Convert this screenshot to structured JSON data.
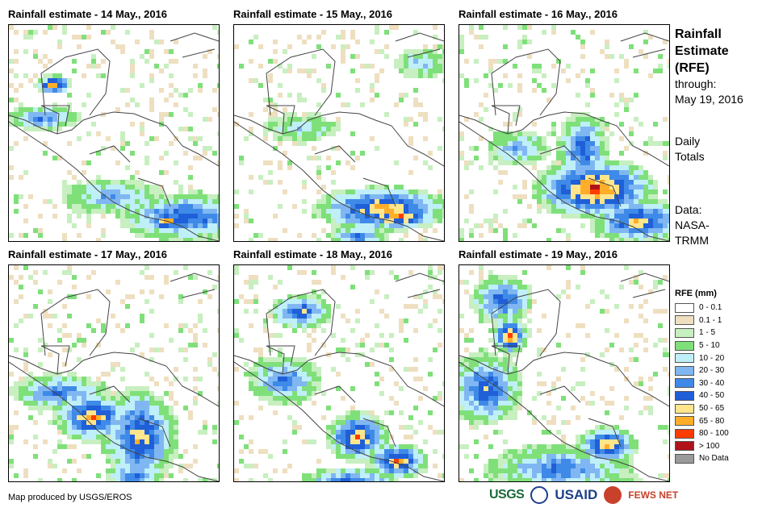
{
  "panels": [
    {
      "title": "Rainfall estimate - 14 May., 2016",
      "blobs": [
        [
          53,
          71,
          14,
          8,
          9
        ],
        [
          40,
          112,
          30,
          10,
          5
        ],
        [
          215,
          235,
          55,
          20,
          6
        ],
        [
          245,
          287,
          35,
          15,
          9
        ],
        [
          195,
          240,
          20,
          10,
          8
        ],
        [
          125,
          210,
          40,
          15,
          4
        ]
      ]
    },
    {
      "title": "Rainfall estimate - 15 May., 2016",
      "blobs": [
        [
          180,
          225,
          55,
          18,
          8
        ],
        [
          200,
          235,
          30,
          10,
          9
        ],
        [
          100,
          285,
          65,
          13,
          8
        ],
        [
          230,
          45,
          22,
          12,
          3
        ],
        [
          80,
          125,
          30,
          12,
          3
        ],
        [
          150,
          260,
          25,
          10,
          5
        ]
      ]
    },
    {
      "title": "Rainfall estimate - 16 May., 2016",
      "blobs": [
        [
          165,
          200,
          50,
          25,
          9
        ],
        [
          150,
          150,
          20,
          30,
          6
        ],
        [
          220,
          240,
          40,
          18,
          7
        ],
        [
          40,
          285,
          30,
          10,
          8
        ],
        [
          235,
          285,
          20,
          10,
          8
        ],
        [
          70,
          150,
          25,
          15,
          4
        ]
      ]
    },
    {
      "title": "Rainfall estimate - 17 May., 2016",
      "blobs": [
        [
          100,
          185,
          30,
          20,
          8
        ],
        [
          160,
          210,
          30,
          40,
          7
        ],
        [
          90,
          480,
          70,
          40,
          4
        ],
        [
          60,
          155,
          40,
          15,
          5
        ],
        [
          240,
          285,
          20,
          15,
          8
        ],
        [
          150,
          260,
          20,
          10,
          6
        ]
      ]
    },
    {
      "title": "Rainfall estimate - 18 May., 2016",
      "blobs": [
        [
          150,
          210,
          25,
          20,
          8
        ],
        [
          200,
          240,
          25,
          15,
          8
        ],
        [
          80,
          55,
          25,
          15,
          6
        ],
        [
          140,
          270,
          40,
          15,
          7
        ],
        [
          60,
          140,
          30,
          20,
          5
        ],
        [
          240,
          285,
          25,
          10,
          7
        ]
      ]
    },
    {
      "title": "Rainfall estimate - 19 May., 2016",
      "blobs": [
        [
          60,
          85,
          15,
          15,
          9
        ],
        [
          30,
          150,
          30,
          30,
          6
        ],
        [
          180,
          220,
          25,
          15,
          8
        ],
        [
          50,
          40,
          25,
          20,
          6
        ],
        [
          120,
          250,
          60,
          20,
          5
        ],
        [
          200,
          280,
          30,
          12,
          7
        ]
      ]
    }
  ],
  "side": {
    "title_line1": "Rainfall",
    "title_line2": "Estimate",
    "title_line3": "(RFE)",
    "through_label": "through:",
    "through_date": "May 19, 2016",
    "daily_line1": "Daily",
    "daily_line2": "Totals",
    "data_line1": "Data:",
    "data_line2": "NASA-",
    "data_line3": "TRMM"
  },
  "legend": {
    "title": "RFE (mm)",
    "items": [
      {
        "label": "0 - 0.1",
        "color": "#ffffff"
      },
      {
        "label": "0.1 - 1",
        "color": "#eedfc0"
      },
      {
        "label": "1 - 5",
        "color": "#c7efc0"
      },
      {
        "label": "5 - 10",
        "color": "#7fe07a"
      },
      {
        "label": "10 - 20",
        "color": "#bfeff8"
      },
      {
        "label": "20 - 30",
        "color": "#80b7f2"
      },
      {
        "label": "30 - 40",
        "color": "#3f8ae8"
      },
      {
        "label": "40 - 50",
        "color": "#1f5fd8"
      },
      {
        "label": "50 - 65",
        "color": "#ffe58c"
      },
      {
        "label": "65 - 80",
        "color": "#ffae2a"
      },
      {
        "label": "80 - 100",
        "color": "#ff3c00"
      },
      {
        "label": "> 100",
        "color": "#b0131a"
      },
      {
        "label": "No Data",
        "color": "#9a9a9a"
      }
    ]
  },
  "credit": "Map produced by USGS/EROS",
  "logos": {
    "usgs": "USGS",
    "usaid": "USAID",
    "fews": "FEWS NET"
  }
}
